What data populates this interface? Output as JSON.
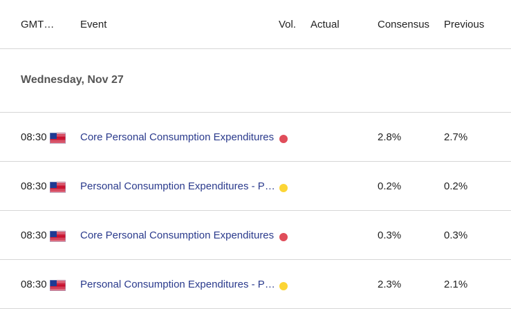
{
  "columns": {
    "gmt": "GMT…",
    "event": "Event",
    "vol": "Vol.",
    "actual": "Actual",
    "consensus": "Consensus",
    "previous": "Previous"
  },
  "date_header": "Wednesday, Nov 27",
  "colors": {
    "high_volatility": "#e04d5a",
    "medium_volatility": "#fcd535",
    "event_link": "#2a3a8c"
  },
  "events": [
    {
      "time": "08:30",
      "flag": "us-flag-icon",
      "name": "Core Personal Consumption Expenditures",
      "volatility": "high",
      "actual": "",
      "consensus": "2.8%",
      "previous": "2.7%"
    },
    {
      "time": "08:30",
      "flag": "us-flag-icon",
      "name": "Personal Consumption Expenditures - Price Index",
      "volatility": "medium",
      "actual": "",
      "consensus": "0.2%",
      "previous": "0.2%"
    },
    {
      "time": "08:30",
      "flag": "us-flag-icon",
      "name": "Core Personal Consumption Expenditures",
      "volatility": "high",
      "actual": "",
      "consensus": "0.3%",
      "previous": "0.3%"
    },
    {
      "time": "08:30",
      "flag": "us-flag-icon",
      "name": "Personal Consumption Expenditures - Price Index",
      "volatility": "medium",
      "actual": "",
      "consensus": "2.3%",
      "previous": "2.1%"
    }
  ]
}
